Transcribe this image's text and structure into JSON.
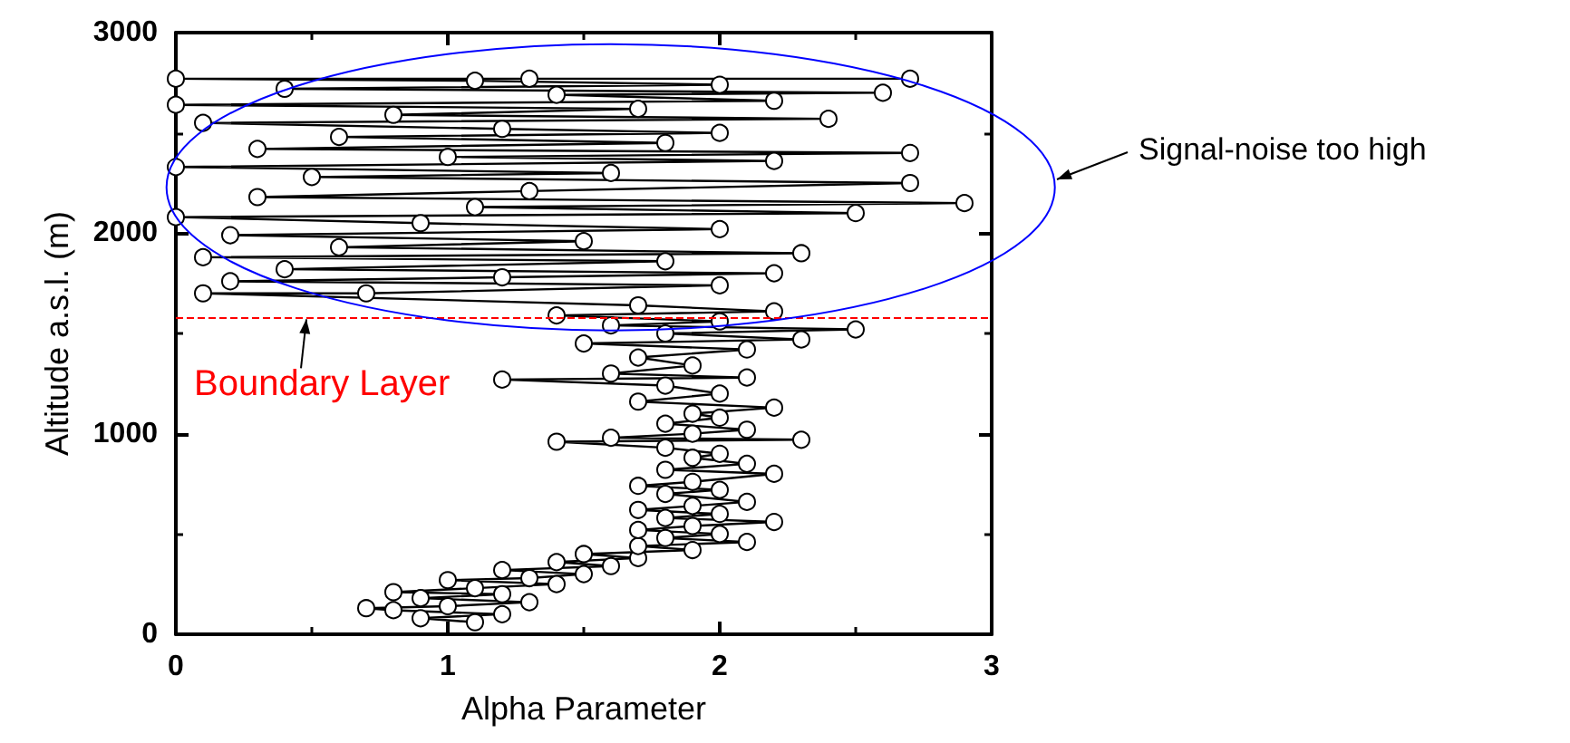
{
  "chart_data": {
    "type": "line",
    "xlabel": "Alpha Parameter",
    "ylabel": "Altitude a.s.l. (m)",
    "xlim": [
      0,
      3
    ],
    "xticks": [
      0,
      1,
      2,
      3
    ],
    "ylim": [
      0,
      3000
    ],
    "yticks": [
      0,
      1000,
      2000,
      3000
    ],
    "marker": "circle",
    "line_style": "solid",
    "annotations": [
      "Signal-noise too high"
    ],
    "ref_lines": [
      {
        "axis": "y",
        "value": 1580,
        "label": "Boundary Layer",
        "color": "#ff0000",
        "line_style": "dashed"
      }
    ],
    "series": [
      {
        "color": "#000000",
        "x": [
          1.1,
          0.9,
          1.2,
          0.8,
          0.7,
          1.0,
          1.3,
          0.9,
          1.2,
          0.8,
          1.1,
          1.4,
          1.0,
          1.3,
          1.5,
          1.2,
          1.6,
          1.4,
          1.7,
          1.5,
          1.9,
          1.7,
          2.1,
          1.8,
          2.0,
          1.7,
          1.9,
          2.2,
          1.8,
          2.0,
          1.7,
          1.9,
          2.1,
          1.8,
          2.0,
          1.7,
          1.9,
          2.2,
          1.8,
          2.1,
          1.9,
          2.0,
          1.8,
          1.4,
          2.3,
          1.6,
          1.9,
          2.1,
          1.8,
          2.0,
          1.9,
          2.2,
          1.7,
          2.0,
          1.8,
          1.2,
          2.1,
          1.6,
          1.9,
          1.7,
          2.1,
          1.5,
          2.3,
          1.8,
          2.5,
          1.6,
          2.0,
          1.4,
          2.2,
          1.7,
          0.1,
          0.7,
          2.0,
          0.2,
          1.2,
          2.2,
          0.4,
          1.8,
          0.1,
          2.3,
          0.6,
          1.5,
          0.2,
          2.0,
          0.9,
          0.0,
          2.5,
          1.1,
          2.9,
          0.3,
          1.3,
          2.7,
          0.5,
          1.6,
          0.0,
          2.2,
          1.0,
          2.7,
          0.3,
          1.8,
          0.6,
          2.0,
          1.2,
          0.1,
          2.4,
          0.8,
          1.7,
          0.0,
          2.2,
          1.4,
          2.6,
          0.4,
          2.0,
          1.1,
          0.0,
          2.7,
          1.3
        ],
        "values": [
          60,
          80,
          100,
          120,
          130,
          140,
          160,
          180,
          200,
          210,
          230,
          250,
          270,
          280,
          300,
          320,
          340,
          360,
          380,
          400,
          420,
          440,
          460,
          480,
          500,
          520,
          540,
          560,
          580,
          600,
          620,
          640,
          660,
          700,
          720,
          740,
          760,
          800,
          820,
          850,
          880,
          900,
          930,
          960,
          970,
          980,
          1000,
          1020,
          1050,
          1080,
          1100,
          1130,
          1160,
          1200,
          1240,
          1270,
          1280,
          1300,
          1340,
          1380,
          1420,
          1450,
          1470,
          1500,
          1520,
          1540,
          1560,
          1590,
          1610,
          1640,
          1700,
          1700,
          1740,
          1760,
          1780,
          1800,
          1820,
          1860,
          1880,
          1900,
          1930,
          1960,
          1990,
          2020,
          2050,
          2080,
          2100,
          2130,
          2150,
          2180,
          2210,
          2250,
          2280,
          2300,
          2330,
          2360,
          2380,
          2400,
          2420,
          2450,
          2480,
          2500,
          2520,
          2550,
          2570,
          2590,
          2620,
          2640,
          2660,
          2690,
          2700,
          2720,
          2740,
          2760,
          2770,
          2770,
          2770
        ]
      }
    ]
  }
}
